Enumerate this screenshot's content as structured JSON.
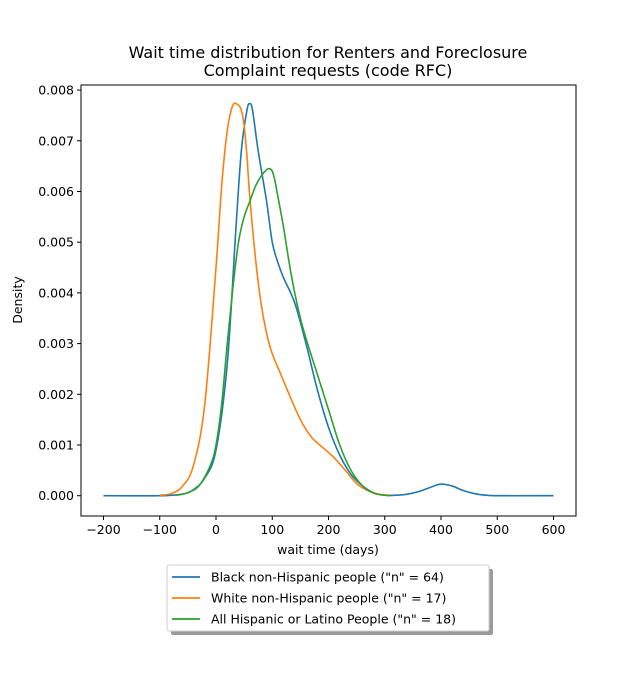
{
  "chart_data": {
    "type": "line",
    "title": [
      "Wait time distribution  for Renters and Foreclosure",
      "Complaint requests (code RFC)"
    ],
    "xlabel": "wait time (days)",
    "ylabel": "Density",
    "xlim": [
      -240,
      640
    ],
    "ylim": [
      -0.0004,
      0.0081
    ],
    "xticks": [
      -200,
      -100,
      0,
      100,
      200,
      300,
      400,
      500,
      600
    ],
    "xtick_labels": [
      "−200",
      "−100",
      "0",
      "100",
      "200",
      "300",
      "400",
      "500",
      "600"
    ],
    "yticks": [
      0,
      0.001,
      0.002,
      0.003,
      0.004,
      0.005,
      0.006,
      0.007,
      0.008
    ],
    "ytick_labels": [
      "0.000",
      "0.001",
      "0.002",
      "0.003",
      "0.004",
      "0.005",
      "0.006",
      "0.007",
      "0.008"
    ],
    "grid": false,
    "legend_position": "bottom-center",
    "series": [
      {
        "name": "Black non-Hispanic people (\"n\" = 64)",
        "color": "#1f77b4",
        "x": [
          -200,
          -100,
          -60,
          -40,
          -20,
          0,
          20,
          35,
          45,
          55,
          60,
          65,
          75,
          90,
          100,
          110,
          120,
          140,
          160,
          180,
          200,
          220,
          240,
          260,
          280,
          300,
          320,
          340,
          360,
          380,
          400,
          420,
          440,
          460,
          480,
          500,
          550,
          600
        ],
        "y": [
          0,
          0,
          3e-05,
          0.00012,
          0.00035,
          0.0009,
          0.0026,
          0.0052,
          0.0068,
          0.0076,
          0.00773,
          0.0076,
          0.0068,
          0.0058,
          0.005,
          0.0046,
          0.0043,
          0.0038,
          0.003,
          0.0021,
          0.00135,
          0.0008,
          0.00042,
          0.0002,
          6e-05,
          1e-05,
          1e-05,
          3e-05,
          8e-05,
          0.00016,
          0.00023,
          0.00019,
          0.0001,
          4e-05,
          1e-05,
          0,
          0,
          0
        ]
      },
      {
        "name": "White non-Hispanic people (\"n\" = 17)",
        "color": "#ff7f0e",
        "x": [
          -100,
          -80,
          -60,
          -40,
          -20,
          0,
          10,
          20,
          30,
          40,
          45,
          50,
          55,
          60,
          70,
          80,
          90,
          100,
          115,
          130,
          150,
          170,
          190,
          210,
          230,
          250,
          270,
          290,
          310
        ],
        "y": [
          1e-05,
          4e-05,
          0.00018,
          0.0006,
          0.0018,
          0.0045,
          0.0061,
          0.0072,
          0.0077,
          0.0077,
          0.0076,
          0.0073,
          0.0067,
          0.0059,
          0.0047,
          0.0038,
          0.0032,
          0.0028,
          0.0024,
          0.002,
          0.0015,
          0.00115,
          0.00095,
          0.00075,
          0.0005,
          0.00024,
          0.0001,
          3e-05,
          1e-05
        ]
      },
      {
        "name": "All Hispanic or Latino People (\"n\" = 18)",
        "color": "#2ca02c",
        "x": [
          -70,
          -50,
          -30,
          -10,
          0,
          10,
          20,
          30,
          40,
          50,
          60,
          70,
          80,
          90,
          95,
          100,
          105,
          110,
          120,
          130,
          140,
          150,
          160,
          180,
          200,
          220,
          240,
          260,
          280,
          300,
          310
        ],
        "y": [
          1e-05,
          6e-05,
          0.0002,
          0.0006,
          0.001,
          0.0018,
          0.003,
          0.0041,
          0.005,
          0.0055,
          0.0058,
          0.0061,
          0.0063,
          0.00643,
          0.00645,
          0.0064,
          0.0062,
          0.0059,
          0.0053,
          0.0046,
          0.004,
          0.0035,
          0.0031,
          0.0024,
          0.0017,
          0.001,
          0.0005,
          0.0002,
          5e-05,
          1e-05,
          0
        ]
      }
    ]
  }
}
